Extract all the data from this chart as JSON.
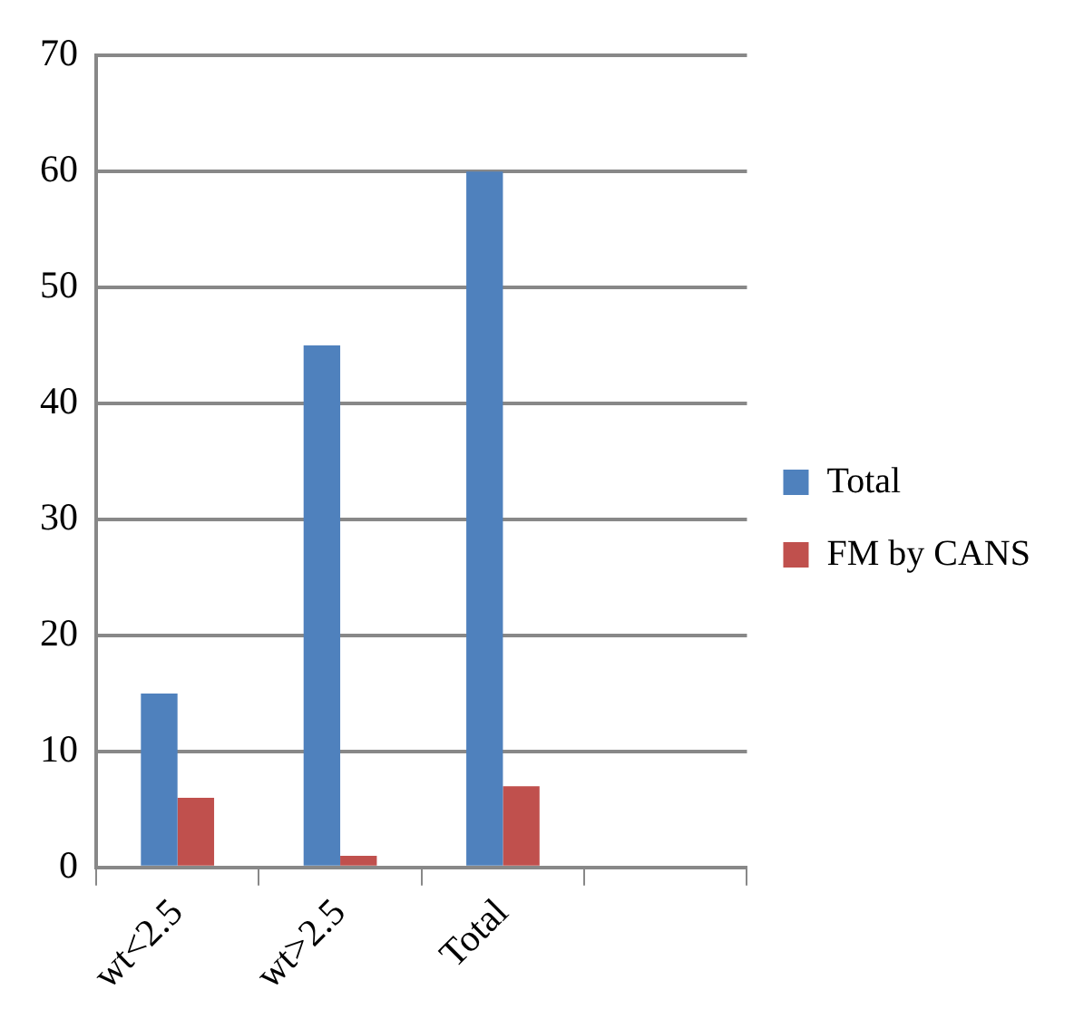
{
  "chart_data": {
    "type": "bar",
    "categories": [
      "wt<2.5",
      "wt>2.5",
      "Total",
      null
    ],
    "series": [
      {
        "name": "Total",
        "color": "#4f81bd",
        "values": [
          15,
          45,
          60,
          null
        ]
      },
      {
        "name": "FM by CANS",
        "color": "#c0504d",
        "values": [
          6,
          1,
          7,
          null
        ]
      }
    ],
    "ylim": [
      0,
      70
    ],
    "yticks": [
      0,
      10,
      20,
      30,
      40,
      50,
      60,
      70
    ],
    "grid": "y",
    "legend": "right"
  }
}
